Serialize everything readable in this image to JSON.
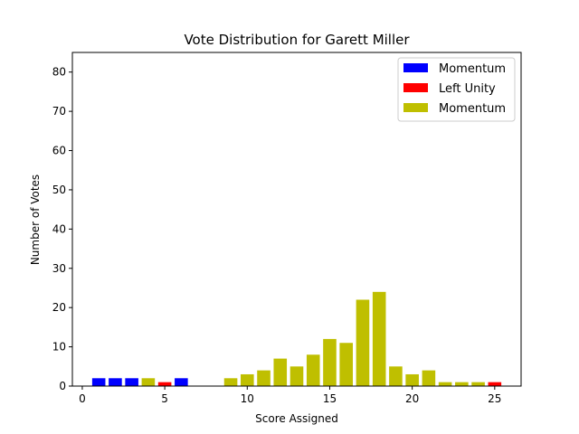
{
  "chart_data": {
    "type": "bar",
    "title": "Vote Distribution for Garett Miller",
    "xlabel": "Score Assigned",
    "ylabel": "Number of Votes",
    "xlim": [
      -0.6,
      26.6
    ],
    "ylim": [
      0,
      85
    ],
    "xticks": [
      0,
      5,
      10,
      15,
      20,
      25
    ],
    "yticks": [
      0,
      10,
      20,
      30,
      40,
      50,
      60,
      70,
      80
    ],
    "grid": false,
    "legend_position": "top-right",
    "series": [
      {
        "name": "Momentum",
        "color": "#0000ff",
        "x": [
          1,
          2,
          3,
          6
        ],
        "values": [
          2,
          2,
          2,
          2
        ]
      },
      {
        "name": "Left Unity",
        "color": "#ff0000",
        "x": [
          5,
          25
        ],
        "values": [
          1,
          1
        ]
      },
      {
        "name": "Momentum",
        "color": "#bfbf00",
        "x": [
          4,
          9,
          10,
          11,
          12,
          13,
          14,
          15,
          16,
          17,
          18,
          19,
          20,
          21,
          22,
          23,
          24
        ],
        "values": [
          2,
          2,
          3,
          4,
          7,
          5,
          8,
          12,
          11,
          22,
          24,
          5,
          3,
          4,
          1,
          1,
          1
        ]
      }
    ]
  }
}
